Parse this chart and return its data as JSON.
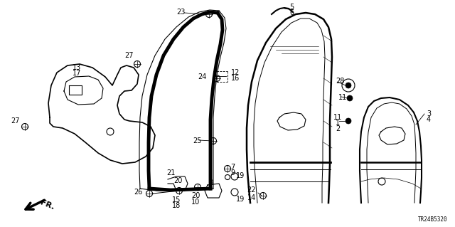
{
  "diagram_code": "TR24B5320",
  "bg_color": "#ffffff",
  "line_color": "#000000"
}
